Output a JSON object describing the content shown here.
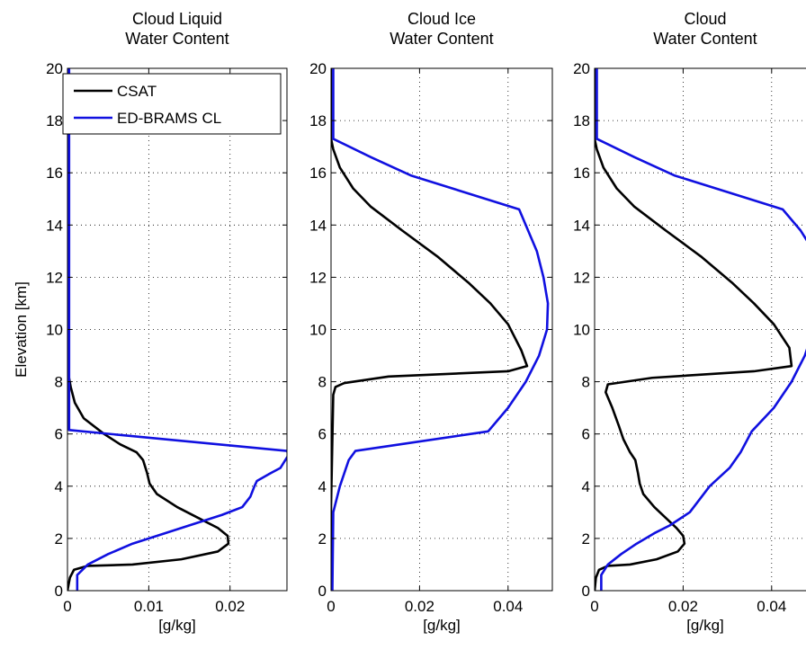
{
  "chart_data": [
    {
      "type": "line",
      "title": [
        "Cloud Liquid",
        "Water Content"
      ],
      "xlabel": "[g/kg]",
      "ylabel": "Elevation [km]",
      "xlim": [
        0,
        0.027
      ],
      "ylim": [
        0,
        20
      ],
      "xticks": [
        0,
        0.01,
        0.02
      ],
      "xtick_labels": [
        "0",
        "0.01",
        "0.02"
      ],
      "yticks": [
        0,
        2,
        4,
        6,
        8,
        10,
        12,
        14,
        16,
        18,
        20
      ],
      "ytick_labels": [
        "0",
        "2",
        "4",
        "6",
        "8",
        "10",
        "12",
        "14",
        "16",
        "18",
        "20"
      ],
      "grid": true,
      "legend": "top-left",
      "series": [
        {
          "name": "CSAT",
          "color": "#000000",
          "points": [
            [
              0,
              0
            ],
            [
              0.0003,
              0.5
            ],
            [
              0.0008,
              0.8
            ],
            [
              0.0025,
              0.95
            ],
            [
              0.008,
              1.0
            ],
            [
              0.014,
              1.2
            ],
            [
              0.0185,
              1.5
            ],
            [
              0.0198,
              1.8
            ],
            [
              0.0197,
              2.1
            ],
            [
              0.0185,
              2.4
            ],
            [
              0.016,
              2.8
            ],
            [
              0.0135,
              3.2
            ],
            [
              0.011,
              3.7
            ],
            [
              0.0101,
              4.1
            ],
            [
              0.0098,
              4.5
            ],
            [
              0.0093,
              5.0
            ],
            [
              0.0085,
              5.3
            ],
            [
              0.0065,
              5.6
            ],
            [
              0.0045,
              6.0
            ],
            [
              0.002,
              6.6
            ],
            [
              0.0009,
              7.2
            ],
            [
              0.0004,
              7.8
            ],
            [
              0.0001,
              8.3
            ],
            [
              0,
              8.6
            ],
            [
              0,
              20
            ]
          ]
        },
        {
          "name": "ED-BRAMS CL",
          "color": "#1010e0",
          "points": [
            [
              0.0012,
              0
            ],
            [
              0.0012,
              0.6
            ],
            [
              0.0025,
              1.0
            ],
            [
              0.005,
              1.4
            ],
            [
              0.008,
              1.8
            ],
            [
              0.012,
              2.2
            ],
            [
              0.015,
              2.5
            ],
            [
              0.019,
              2.9
            ],
            [
              0.0215,
              3.2
            ],
            [
              0.0225,
              3.6
            ],
            [
              0.023,
              4.0
            ],
            [
              0.0233,
              4.2
            ],
            [
              0.025,
              4.5
            ],
            [
              0.0262,
              4.7
            ],
            [
              0.0272,
              5.2
            ],
            [
              0.027,
              5.35
            ],
            [
              0.0002,
              6.15
            ],
            [
              0.0002,
              20
            ]
          ]
        }
      ]
    },
    {
      "type": "line",
      "title": [
        "Cloud Ice",
        "Water Content"
      ],
      "xlabel": "[g/kg]",
      "ylabel": "",
      "xlim": [
        0,
        0.05
      ],
      "ylim": [
        0,
        20
      ],
      "xticks": [
        0,
        0.02,
        0.04
      ],
      "xtick_labels": [
        "0",
        "0.02",
        "0.04"
      ],
      "yticks": [
        0,
        2,
        4,
        6,
        8,
        10,
        12,
        14,
        16,
        18,
        20
      ],
      "ytick_labels": [
        "0",
        "2",
        "4",
        "6",
        "8",
        "10",
        "12",
        "14",
        "16",
        "18",
        "20"
      ],
      "grid": true,
      "series": [
        {
          "name": "CSAT",
          "color": "#000000",
          "points": [
            [
              0,
              0
            ],
            [
              0,
              3.2
            ],
            [
              0.0005,
              7.5
            ],
            [
              0.001,
              7.8
            ],
            [
              0.003,
              7.95
            ],
            [
              0.013,
              8.2
            ],
            [
              0.04,
              8.4
            ],
            [
              0.0443,
              8.6
            ],
            [
              0.043,
              9.2
            ],
            [
              0.04,
              10.2
            ],
            [
              0.036,
              11.0
            ],
            [
              0.031,
              11.8
            ],
            [
              0.024,
              12.8
            ],
            [
              0.016,
              13.8
            ],
            [
              0.009,
              14.7
            ],
            [
              0.005,
              15.4
            ],
            [
              0.002,
              16.2
            ],
            [
              0.0005,
              16.9
            ],
            [
              0,
              17.3
            ],
            [
              0,
              20
            ]
          ]
        },
        {
          "name": "ED-BRAMS CL",
          "color": "#1010e0",
          "points": [
            [
              0.0003,
              0
            ],
            [
              0.0005,
              3.0
            ],
            [
              0.002,
              4.0
            ],
            [
              0.004,
              5.0
            ],
            [
              0.0055,
              5.35
            ],
            [
              0.0355,
              6.1
            ],
            [
              0.04,
              7.0
            ],
            [
              0.044,
              8.0
            ],
            [
              0.047,
              9.0
            ],
            [
              0.0488,
              10.0
            ],
            [
              0.049,
              11.0
            ],
            [
              0.048,
              12.0
            ],
            [
              0.0465,
              13.0
            ],
            [
              0.0445,
              13.8
            ],
            [
              0.0425,
              14.6
            ],
            [
              0.018,
              15.9
            ],
            [
              0.009,
              16.6
            ],
            [
              0.0005,
              17.3
            ],
            [
              0.0005,
              20
            ]
          ]
        }
      ]
    },
    {
      "type": "line",
      "title": [
        "Cloud",
        "Water Content"
      ],
      "xlabel": "[g/kg]",
      "ylabel": "",
      "xlim": [
        0,
        0.05
      ],
      "ylim": [
        0,
        20
      ],
      "xticks": [
        0,
        0.02,
        0.04
      ],
      "xtick_labels": [
        "0",
        "0.02",
        "0.04"
      ],
      "yticks": [
        0,
        2,
        4,
        6,
        8,
        10,
        12,
        14,
        16,
        18,
        20
      ],
      "ytick_labels": [
        "0",
        "2",
        "4",
        "6",
        "8",
        "10",
        "12",
        "14",
        "16",
        "18",
        "20"
      ],
      "grid": true,
      "series": [
        {
          "name": "CSAT",
          "color": "#000000",
          "points": [
            [
              0,
              0
            ],
            [
              0.0003,
              0.5
            ],
            [
              0.001,
              0.8
            ],
            [
              0.003,
              0.95
            ],
            [
              0.008,
              1.0
            ],
            [
              0.014,
              1.2
            ],
            [
              0.0188,
              1.5
            ],
            [
              0.0203,
              1.8
            ],
            [
              0.02,
              2.1
            ],
            [
              0.0185,
              2.4
            ],
            [
              0.016,
              2.8
            ],
            [
              0.0135,
              3.2
            ],
            [
              0.011,
              3.7
            ],
            [
              0.0102,
              4.1
            ],
            [
              0.0098,
              4.5
            ],
            [
              0.0092,
              5.0
            ],
            [
              0.008,
              5.3
            ],
            [
              0.0065,
              5.8
            ],
            [
              0.0055,
              6.3
            ],
            [
              0.004,
              7.0
            ],
            [
              0.0025,
              7.6
            ],
            [
              0.003,
              7.9
            ],
            [
              0.013,
              8.15
            ],
            [
              0.036,
              8.4
            ],
            [
              0.0445,
              8.6
            ],
            [
              0.044,
              9.3
            ],
            [
              0.0405,
              10.2
            ],
            [
              0.036,
              11.0
            ],
            [
              0.031,
              11.8
            ],
            [
              0.024,
              12.8
            ],
            [
              0.016,
              13.8
            ],
            [
              0.009,
              14.7
            ],
            [
              0.005,
              15.4
            ],
            [
              0.002,
              16.2
            ],
            [
              0.0005,
              16.9
            ],
            [
              0,
              17.3
            ],
            [
              0,
              20
            ]
          ]
        },
        {
          "name": "ED-BRAMS CL",
          "color": "#1010e0",
          "points": [
            [
              0.0015,
              0
            ],
            [
              0.0015,
              0.6
            ],
            [
              0.003,
              1.0
            ],
            [
              0.006,
              1.4
            ],
            [
              0.0095,
              1.8
            ],
            [
              0.0135,
              2.2
            ],
            [
              0.017,
              2.5
            ],
            [
              0.0215,
              3.0
            ],
            [
              0.026,
              4.0
            ],
            [
              0.0305,
              4.7
            ],
            [
              0.033,
              5.3
            ],
            [
              0.0355,
              6.1
            ],
            [
              0.0405,
              7.0
            ],
            [
              0.0445,
              8.0
            ],
            [
              0.0475,
              9.0
            ],
            [
              0.0495,
              10.0
            ],
            [
              0.05,
              11.0
            ],
            [
              0.05,
              12.0
            ],
            [
              0.0495,
              13.0
            ],
            [
              0.0465,
              13.8
            ],
            [
              0.0425,
              14.6
            ],
            [
              0.018,
              15.9
            ],
            [
              0.009,
              16.6
            ],
            [
              0.0005,
              17.3
            ],
            [
              0.0005,
              20
            ]
          ]
        }
      ]
    }
  ]
}
